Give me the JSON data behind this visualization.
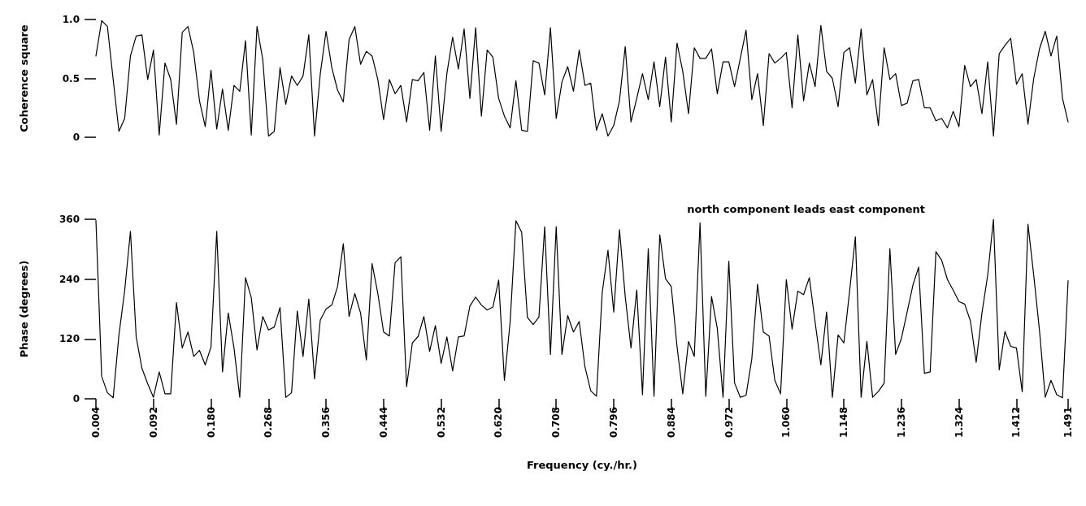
{
  "chart_data": [
    {
      "type": "line",
      "ylabel": "Coherence square",
      "tick_labels": "y",
      "line_style": "solid",
      "xlim": [
        0.004,
        1.491
      ],
      "ylim": [
        0,
        1
      ],
      "yticks": [
        0,
        0.5,
        {
          "value": 1,
          "label": "1.0"
        }
      ],
      "x": [
        0.004,
        0.0128,
        0.0216,
        0.0304,
        0.0392,
        0.048,
        0.0568,
        0.0656,
        0.0744,
        0.0832,
        0.092,
        0.1008,
        0.1096,
        0.1184,
        0.1272,
        0.136,
        0.1448,
        0.1536,
        0.1624,
        0.1712,
        0.18,
        0.1888,
        0.1976,
        0.2064,
        0.2152,
        0.224,
        0.2328,
        0.2416,
        0.2504,
        0.2592,
        0.268,
        0.2768,
        0.2856,
        0.2944,
        0.3032,
        0.312,
        0.3208,
        0.3296,
        0.3384,
        0.3472,
        0.356,
        0.3648,
        0.3736,
        0.3824,
        0.3912,
        0.4,
        0.4088,
        0.4176,
        0.4264,
        0.4352,
        0.444,
        0.4528,
        0.4616,
        0.4704,
        0.4792,
        0.488,
        0.4968,
        0.5056,
        0.5144,
        0.5232,
        0.532,
        0.5408,
        0.5496,
        0.5584,
        0.5672,
        0.576,
        0.5848,
        0.5936,
        0.6024,
        0.6112,
        0.62,
        0.6288,
        0.6376,
        0.6464,
        0.6552,
        0.664,
        0.6728,
        0.6816,
        0.6904,
        0.6992,
        0.708,
        0.7168,
        0.7256,
        0.7344,
        0.7432,
        0.752,
        0.7608,
        0.7696,
        0.7784,
        0.7872,
        0.796,
        0.8048,
        0.8136,
        0.8224,
        0.8312,
        0.84,
        0.8488,
        0.8576,
        0.8664,
        0.8752,
        0.884,
        0.8928,
        0.9016,
        0.9104,
        0.9192,
        0.928,
        0.9368,
        0.9456,
        0.9544,
        0.9632,
        0.972,
        0.9808,
        0.9896,
        0.9984,
        1.0072,
        1.016,
        1.0248,
        1.0336,
        1.0424,
        1.0512,
        1.06,
        1.0688,
        1.0776,
        1.0864,
        1.0952,
        1.104,
        1.1128,
        1.1216,
        1.1304,
        1.1392,
        1.148,
        1.1568,
        1.1656,
        1.1744,
        1.1832,
        1.192,
        1.2008,
        1.2096,
        1.2184,
        1.2272,
        1.236,
        1.2448,
        1.2536,
        1.2624,
        1.2712,
        1.28,
        1.2888,
        1.2976,
        1.3064,
        1.3152,
        1.324,
        1.3328,
        1.3416,
        1.3504,
        1.3592,
        1.368,
        1.3768,
        1.3856,
        1.3944,
        1.4032,
        1.412,
        1.4208,
        1.4296,
        1.4384,
        1.4472,
        1.456,
        1.4648,
        1.4736,
        1.4824,
        1.491
      ],
      "series": [
        {
          "color": "#000000",
          "values": [
            0.69,
            0.99,
            0.94,
            0.49,
            0.05,
            0.16,
            0.69,
            0.86,
            0.87,
            0.49,
            0.74,
            0.02,
            0.63,
            0.49,
            0.11,
            0.89,
            0.94,
            0.72,
            0.31,
            0.09,
            0.57,
            0.07,
            0.41,
            0.06,
            0.44,
            0.39,
            0.82,
            0.02,
            0.94,
            0.66,
            0.01,
            0.05,
            0.59,
            0.28,
            0.52,
            0.44,
            0.52,
            0.87,
            0.01,
            0.54,
            0.9,
            0.59,
            0.4,
            0.3,
            0.83,
            0.94,
            0.62,
            0.73,
            0.69,
            0.49,
            0.15,
            0.49,
            0.37,
            0.44,
            0.13,
            0.49,
            0.48,
            0.55,
            0.06,
            0.69,
            0.05,
            0.54,
            0.85,
            0.58,
            0.92,
            0.33,
            0.93,
            0.18,
            0.74,
            0.68,
            0.33,
            0.18,
            0.08,
            0.48,
            0.06,
            0.05,
            0.65,
            0.63,
            0.36,
            0.93,
            0.16,
            0.47,
            0.6,
            0.39,
            0.74,
            0.44,
            0.46,
            0.06,
            0.2,
            0.01,
            0.1,
            0.31,
            0.77,
            0.13,
            0.33,
            0.54,
            0.32,
            0.64,
            0.26,
            0.68,
            0.13,
            0.8,
            0.56,
            0.2,
            0.76,
            0.67,
            0.67,
            0.75,
            0.37,
            0.64,
            0.64,
            0.43,
            0.67,
            0.91,
            0.32,
            0.54,
            0.1,
            0.71,
            0.63,
            0.67,
            0.72,
            0.25,
            0.87,
            0.31,
            0.63,
            0.43,
            0.95,
            0.56,
            0.5,
            0.26,
            0.72,
            0.76,
            0.46,
            0.92,
            0.36,
            0.49,
            0.1,
            0.76,
            0.49,
            0.54,
            0.27,
            0.29,
            0.48,
            0.49,
            0.25,
            0.25,
            0.14,
            0.16,
            0.08,
            0.22,
            0.09,
            0.61,
            0.43,
            0.49,
            0.2,
            0.64,
            0.01,
            0.71,
            0.78,
            0.84,
            0.45,
            0.54,
            0.11,
            0.5,
            0.75,
            0.9,
            0.69,
            0.86,
            0.33,
            0.13
          ]
        }
      ]
    },
    {
      "type": "line",
      "ylabel": "Phase (degrees)",
      "xlabel": "Frequency (cy./hr.)",
      "line_style": "solid",
      "annotations": [
        "north component leads east component"
      ],
      "xlim": [
        0.004,
        1.491
      ],
      "xticks": [
        0.004,
        0.092,
        {
          "value": 0.18,
          "label": "0.180"
        },
        0.268,
        0.356,
        0.444,
        0.532,
        {
          "value": 0.62,
          "label": "0.620"
        },
        0.708,
        0.796,
        0.884,
        0.972,
        {
          "value": 1.06,
          "label": "1.060"
        },
        1.148,
        1.236,
        1.324,
        1.412,
        1.491
      ],
      "ylim": [
        0,
        360
      ],
      "yticks": [
        0,
        120,
        240,
        360
      ],
      "x": [
        0.004,
        0.0128,
        0.0216,
        0.0304,
        0.0392,
        0.048,
        0.0568,
        0.0656,
        0.0744,
        0.0832,
        0.092,
        0.1008,
        0.1096,
        0.1184,
        0.1272,
        0.136,
        0.1448,
        0.1536,
        0.1624,
        0.1712,
        0.18,
        0.1888,
        0.1976,
        0.2064,
        0.2152,
        0.224,
        0.2328,
        0.2416,
        0.2504,
        0.2592,
        0.268,
        0.2768,
        0.2856,
        0.2944,
        0.3032,
        0.312,
        0.3208,
        0.3296,
        0.3384,
        0.3472,
        0.356,
        0.3648,
        0.3736,
        0.3824,
        0.3912,
        0.4,
        0.4088,
        0.4176,
        0.4264,
        0.4352,
        0.444,
        0.4528,
        0.4616,
        0.4704,
        0.4792,
        0.488,
        0.4968,
        0.5056,
        0.5144,
        0.5232,
        0.532,
        0.5408,
        0.5496,
        0.5584,
        0.5672,
        0.576,
        0.5848,
        0.5936,
        0.6024,
        0.6112,
        0.62,
        0.6288,
        0.6376,
        0.6464,
        0.6552,
        0.664,
        0.6728,
        0.6816,
        0.6904,
        0.6992,
        0.708,
        0.7168,
        0.7256,
        0.7344,
        0.7432,
        0.752,
        0.7608,
        0.7696,
        0.7784,
        0.7872,
        0.796,
        0.8048,
        0.8136,
        0.8224,
        0.8312,
        0.84,
        0.8488,
        0.8576,
        0.8664,
        0.8752,
        0.884,
        0.8928,
        0.9016,
        0.9104,
        0.9192,
        0.928,
        0.9368,
        0.9456,
        0.9544,
        0.9632,
        0.972,
        0.9808,
        0.9896,
        0.9984,
        1.0072,
        1.016,
        1.0248,
        1.0336,
        1.0424,
        1.0512,
        1.06,
        1.0688,
        1.0776,
        1.0864,
        1.0952,
        1.104,
        1.1128,
        1.1216,
        1.1304,
        1.1392,
        1.148,
        1.1568,
        1.1656,
        1.1744,
        1.1832,
        1.192,
        1.2008,
        1.2096,
        1.2184,
        1.2272,
        1.236,
        1.2448,
        1.2536,
        1.2624,
        1.2712,
        1.28,
        1.2888,
        1.2976,
        1.3064,
        1.3152,
        1.324,
        1.3328,
        1.3416,
        1.3504,
        1.3592,
        1.368,
        1.3768,
        1.3856,
        1.3944,
        1.4032,
        1.412,
        1.4208,
        1.4296,
        1.4384,
        1.4472,
        1.456,
        1.4648,
        1.4736,
        1.4824,
        1.491
      ],
      "series": [
        {
          "color": "#000000",
          "values": [
            358,
            45,
            12,
            2,
            128,
            217,
            336,
            124,
            61,
            30,
            3,
            54,
            10,
            10,
            193,
            102,
            134,
            85,
            97,
            68,
            104,
            336,
            54,
            172,
            102,
            3,
            243,
            203,
            98,
            165,
            138,
            144,
            183,
            3,
            12,
            176,
            85,
            200,
            40,
            158,
            180,
            188,
            225,
            311,
            165,
            211,
            172,
            78,
            271,
            211,
            134,
            126,
            273,
            285,
            24,
            112,
            125,
            165,
            95,
            147,
            71,
            124,
            56,
            124,
            126,
            186,
            204,
            188,
            178,
            184,
            238,
            37,
            155,
            357,
            334,
            163,
            149,
            164,
            345,
            89,
            345,
            89,
            167,
            134,
            155,
            64,
            16,
            5,
            213,
            298,
            174,
            339,
            205,
            102,
            218,
            8,
            301,
            5,
            329,
            241,
            225,
            105,
            10,
            115,
            85,
            353,
            5,
            205,
            141,
            3,
            276,
            32,
            3,
            7,
            80,
            230,
            134,
            126,
            37,
            10,
            239,
            140,
            216,
            209,
            243,
            154,
            68,
            174,
            3,
            128,
            112,
            216,
            325,
            3,
            115,
            3,
            15,
            31,
            301,
            89,
            121,
            174,
            228,
            264,
            51,
            54,
            295,
            278,
            239,
            218,
            195,
            190,
            156,
            73,
            172,
            248,
            360,
            58,
            135,
            105,
            102,
            14,
            350,
            248,
            137,
            3,
            37,
            8,
            2,
            237
          ]
        }
      ]
    }
  ]
}
